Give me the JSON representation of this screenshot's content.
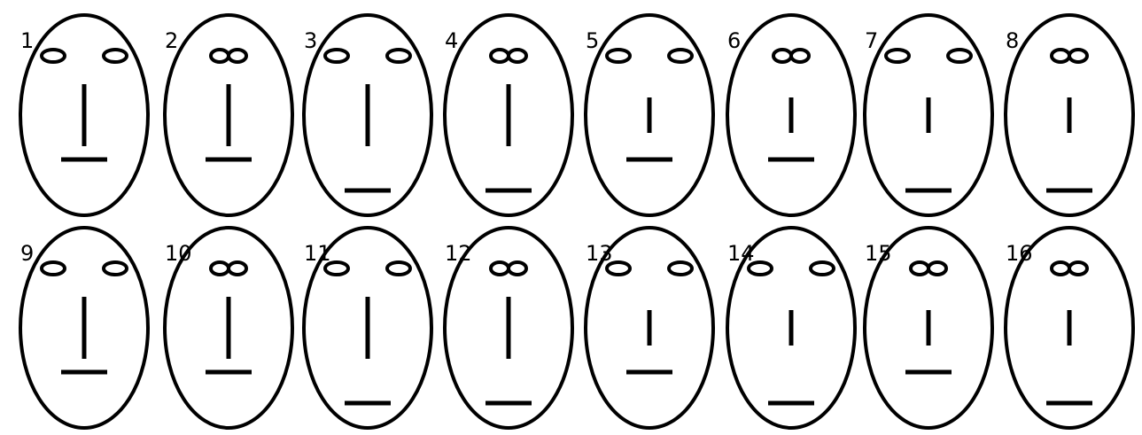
{
  "stroke_color": "#000000",
  "background_color": "#ffffff",
  "faces": [
    {
      "label": "1",
      "eye_spacing": "wide",
      "nose_length": "long",
      "mouth_position": "high"
    },
    {
      "label": "2",
      "eye_spacing": "narrow",
      "nose_length": "long",
      "mouth_position": "high"
    },
    {
      "label": "3",
      "eye_spacing": "wide",
      "nose_length": "long",
      "mouth_position": "low"
    },
    {
      "label": "4",
      "eye_spacing": "narrow",
      "nose_length": "long",
      "mouth_position": "low"
    },
    {
      "label": "5",
      "eye_spacing": "wide",
      "nose_length": "short",
      "mouth_position": "high"
    },
    {
      "label": "6",
      "eye_spacing": "narrow",
      "nose_length": "short",
      "mouth_position": "high"
    },
    {
      "label": "7",
      "eye_spacing": "wide",
      "nose_length": "short",
      "mouth_position": "low"
    },
    {
      "label": "8",
      "eye_spacing": "narrow",
      "nose_length": "short",
      "mouth_position": "low"
    },
    {
      "label": "9",
      "eye_spacing": "wide",
      "nose_length": "long",
      "mouth_position": "high"
    },
    {
      "label": "10",
      "eye_spacing": "narrow",
      "nose_length": "long",
      "mouth_position": "high"
    },
    {
      "label": "11",
      "eye_spacing": "wide",
      "nose_length": "long",
      "mouth_position": "low"
    },
    {
      "label": "12",
      "eye_spacing": "narrow",
      "nose_length": "long",
      "mouth_position": "low"
    },
    {
      "label": "13",
      "eye_spacing": "wide",
      "nose_length": "short",
      "mouth_position": "high"
    },
    {
      "label": "14",
      "eye_spacing": "wide",
      "nose_length": "short",
      "mouth_position": "low"
    },
    {
      "label": "15",
      "eye_spacing": "narrow",
      "nose_length": "short",
      "mouth_position": "high"
    },
    {
      "label": "16",
      "eye_spacing": "narrow",
      "nose_length": "short",
      "mouth_position": "low"
    }
  ]
}
